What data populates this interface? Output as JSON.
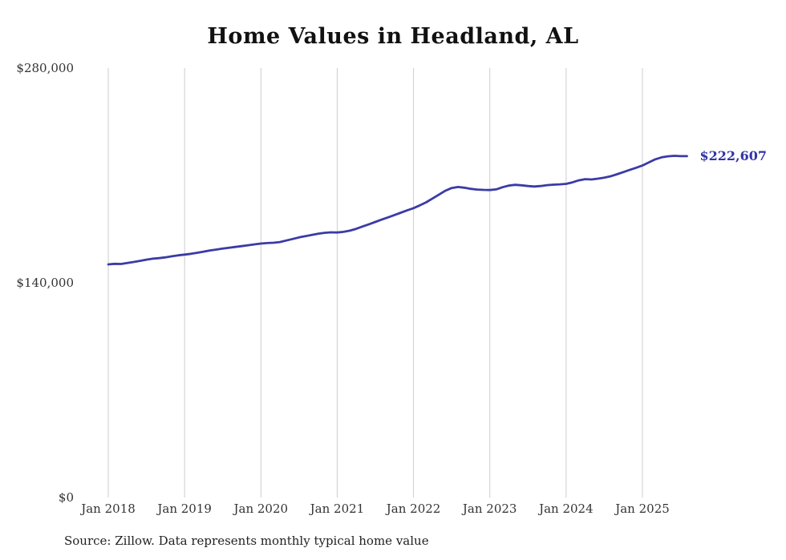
{
  "chart": {
    "title": "Home Values in Headland, AL",
    "source": "Source: Zillow. Data represents monthly typical home value",
    "end_label": "$222,607",
    "line_color": "#3b3ba6",
    "end_label_color": "#3333aa",
    "grid_color": "#cccccc",
    "tick_color": "#333333"
  },
  "chart_data": {
    "type": "line",
    "title": "Home Values in Headland, AL",
    "xlabel": "",
    "ylabel": "",
    "ylim": [
      0,
      280000
    ],
    "y_ticks": [
      0,
      140000,
      280000
    ],
    "y_tick_labels": [
      "$0",
      "$140,000",
      "$280,000"
    ],
    "x_tick_labels": [
      "Jan 2018",
      "Jan 2019",
      "Jan 2020",
      "Jan 2021",
      "Jan 2022",
      "Jan 2023",
      "Jan 2024",
      "Jan 2025"
    ],
    "x_start_month": "2018-01",
    "x_end_month": "2025-08",
    "x_interval": "monthly",
    "grid": "vertical-only",
    "legend": "none",
    "end_value": 222607,
    "series": [
      {
        "name": "Typical home value",
        "values": [
          152000,
          152400,
          152300,
          152900,
          153600,
          154300,
          155100,
          155700,
          156100,
          156600,
          157300,
          157900,
          158400,
          158900,
          159600,
          160300,
          161100,
          161700,
          162300,
          162900,
          163400,
          163900,
          164500,
          165100,
          165600,
          165900,
          166100,
          166600,
          167600,
          168600,
          169600,
          170400,
          171200,
          172000,
          172600,
          172900,
          172800,
          173200,
          174000,
          175200,
          176700,
          178200,
          179700,
          181200,
          182700,
          184200,
          185700,
          187200,
          188700,
          190500,
          192500,
          195000,
          197500,
          200000,
          201800,
          202500,
          202000,
          201300,
          200800,
          200600,
          200500,
          200900,
          202300,
          203400,
          203900,
          203600,
          203100,
          202800,
          203100,
          203700,
          204000,
          204200,
          204500,
          205500,
          206800,
          207600,
          207400,
          207900,
          208600,
          209500,
          210800,
          212200,
          213600,
          215000,
          216500,
          218500,
          220500,
          221800,
          222500,
          222800,
          222600,
          222607
        ]
      }
    ]
  }
}
